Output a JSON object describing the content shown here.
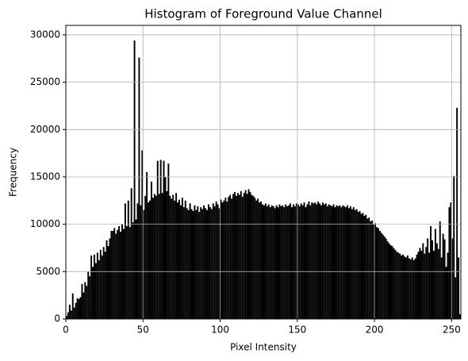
{
  "chart_data": {
    "type": "histogram",
    "title": "Histogram of Foreground Value Channel",
    "xlabel": "Pixel Intensity",
    "ylabel": "Frequency",
    "color": "#000000",
    "grid": true,
    "xlim": [
      0,
      256
    ],
    "ylim": [
      0,
      31000
    ],
    "xticks": [
      0,
      50,
      100,
      150,
      200,
      250
    ],
    "yticks": [
      0,
      5000,
      10000,
      15000,
      20000,
      25000,
      30000
    ],
    "bins": [
      0,
      1,
      2,
      3,
      4,
      5,
      6,
      7,
      8,
      9,
      10,
      11,
      12,
      13,
      14,
      15,
      16,
      17,
      18,
      19,
      20,
      21,
      22,
      23,
      24,
      25,
      26,
      27,
      28,
      29,
      30,
      31,
      32,
      33,
      34,
      35,
      36,
      37,
      38,
      39,
      40,
      41,
      42,
      43,
      44,
      45,
      46,
      47,
      48,
      49,
      50,
      51,
      52,
      53,
      54,
      55,
      56,
      57,
      58,
      59,
      60,
      61,
      62,
      63,
      64,
      65,
      66,
      67,
      68,
      69,
      70,
      71,
      72,
      73,
      74,
      75,
      76,
      77,
      78,
      79,
      80,
      81,
      82,
      83,
      84,
      85,
      86,
      87,
      88,
      89,
      90,
      91,
      92,
      93,
      94,
      95,
      96,
      97,
      98,
      99,
      100,
      101,
      102,
      103,
      104,
      105,
      106,
      107,
      108,
      109,
      110,
      111,
      112,
      113,
      114,
      115,
      116,
      117,
      118,
      119,
      120,
      121,
      122,
      123,
      124,
      125,
      126,
      127,
      128,
      129,
      130,
      131,
      132,
      133,
      134,
      135,
      136,
      137,
      138,
      139,
      140,
      141,
      142,
      143,
      144,
      145,
      146,
      147,
      148,
      149,
      150,
      151,
      152,
      153,
      154,
      155,
      156,
      157,
      158,
      159,
      160,
      161,
      162,
      163,
      164,
      165,
      166,
      167,
      168,
      169,
      170,
      171,
      172,
      173,
      174,
      175,
      176,
      177,
      178,
      179,
      180,
      181,
      182,
      183,
      184,
      185,
      186,
      187,
      188,
      189,
      190,
      191,
      192,
      193,
      194,
      195,
      196,
      197,
      198,
      199,
      200,
      201,
      202,
      203,
      204,
      205,
      206,
      207,
      208,
      209,
      210,
      211,
      212,
      213,
      214,
      215,
      216,
      217,
      218,
      219,
      220,
      221,
      222,
      223,
      224,
      225,
      226,
      227,
      228,
      229,
      230,
      231,
      232,
      233,
      234,
      235,
      236,
      237,
      238,
      239,
      240,
      241,
      242,
      243,
      244,
      245,
      246,
      247,
      248,
      249,
      250,
      251,
      252,
      253,
      254,
      255,
      256
    ],
    "values": [
      300,
      700,
      1500,
      900,
      2700,
      1200,
      1700,
      2200,
      2100,
      2300,
      3700,
      2800,
      3900,
      3500,
      5000,
      4500,
      6700,
      5500,
      6800,
      5900,
      7000,
      6200,
      7300,
      6700,
      7600,
      7100,
      8300,
      7700,
      8500,
      9300,
      9300,
      9600,
      9000,
      9400,
      9800,
      9200,
      10000,
      9500,
      12200,
      9800,
      12500,
      9700,
      13800,
      10200,
      29400,
      10500,
      12200,
      27600,
      12000,
      17800,
      11500,
      13000,
      15500,
      12300,
      12500,
      14500,
      12800,
      13200,
      13000,
      16700,
      13200,
      16800,
      13300,
      16700,
      15000,
      13500,
      16400,
      13000,
      12700,
      13100,
      12500,
      13300,
      12300,
      12600,
      12000,
      12800,
      11800,
      12500,
      11700,
      11500,
      12200,
      11600,
      11400,
      12000,
      11500,
      11900,
      11300,
      11800,
      11600,
      12000,
      11700,
      11500,
      12100,
      11800,
      11600,
      12200,
      11900,
      12400,
      12100,
      11700,
      12600,
      12300,
      12500,
      12800,
      12400,
      12900,
      13100,
      12700,
      13200,
      13400,
      13000,
      13300,
      13100,
      13500,
      12900,
      13300,
      13600,
      13200,
      13700,
      13400,
      13100,
      13000,
      12800,
      12500,
      12700,
      12300,
      12400,
      12100,
      12000,
      12200,
      11900,
      12100,
      11800,
      12000,
      11900,
      11700,
      12000,
      11800,
      12100,
      11900,
      12000,
      11800,
      12100,
      11900,
      12000,
      12200,
      11800,
      12100,
      11900,
      12200,
      12100,
      11900,
      12200,
      12000,
      12300,
      11800,
      12100,
      12400,
      12000,
      12300,
      12200,
      12300,
      12100,
      12400,
      12200,
      12000,
      12300,
      12100,
      12200,
      11900,
      12100,
      12000,
      11900,
      12100,
      11800,
      12000,
      11900,
      12000,
      11800,
      12000,
      11900,
      11800,
      12000,
      11700,
      11900,
      11600,
      11800,
      11500,
      11600,
      11300,
      11400,
      11100,
      11200,
      10900,
      11000,
      10600,
      10700,
      10300,
      10400,
      10000,
      10100,
      9700,
      9600,
      9300,
      9100,
      8900,
      8700,
      8500,
      8200,
      8000,
      7800,
      7700,
      7500,
      7300,
      7100,
      7000,
      6900,
      6700,
      6800,
      6600,
      6500,
      6700,
      6400,
      6300,
      6500,
      6200,
      6400,
      6800,
      7100,
      7500,
      7200,
      8000,
      6900,
      7600,
      8500,
      7000,
      9800,
      8300,
      7200,
      9500,
      8000,
      7400,
      10300,
      6500,
      9000,
      8400,
      5500,
      7000,
      11800,
      12300,
      8500,
      15100,
      4400,
      22300,
      6500,
      500
    ]
  }
}
